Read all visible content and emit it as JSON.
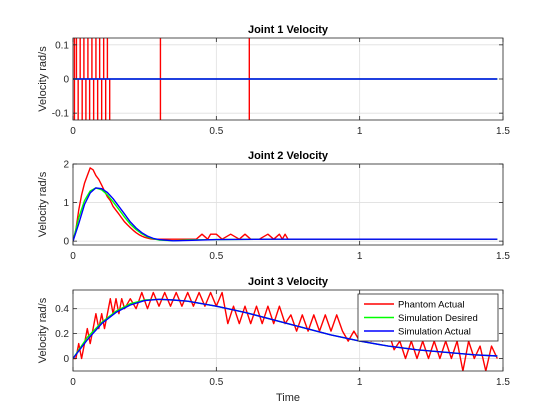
{
  "chart_data": [
    {
      "type": "line",
      "title": "Joint 1 Velocity",
      "xlabel": "",
      "ylabel": "Velocity rad/s",
      "xlim": [
        0,
        1.5
      ],
      "ylim": [
        -0.12,
        0.12
      ],
      "xticks": [
        0,
        0.5,
        1,
        1.5
      ],
      "xtick_labels": [
        "0",
        "0.5",
        "1",
        "1.5"
      ],
      "yticks": [
        -0.1,
        0,
        0.1
      ],
      "ytick_labels": [
        "-0.1",
        "0",
        "0.1"
      ],
      "grid": true,
      "legend": null,
      "series": [
        {
          "color": "#ff0000",
          "style": "spikes",
          "baseline": 0,
          "spikes": [
            {
              "x": 0.005,
              "y": 0.12
            },
            {
              "x": 0.005,
              "y": -0.12
            },
            {
              "x": 0.012,
              "y": 0.12
            },
            {
              "x": 0.018,
              "y": -0.12
            },
            {
              "x": 0.025,
              "y": 0.12
            },
            {
              "x": 0.032,
              "y": -0.12
            },
            {
              "x": 0.038,
              "y": 0.12
            },
            {
              "x": 0.045,
              "y": -0.12
            },
            {
              "x": 0.052,
              "y": 0.12
            },
            {
              "x": 0.058,
              "y": -0.12
            },
            {
              "x": 0.066,
              "y": 0.12
            },
            {
              "x": 0.072,
              "y": -0.12
            },
            {
              "x": 0.08,
              "y": 0.12
            },
            {
              "x": 0.086,
              "y": -0.12
            },
            {
              "x": 0.093,
              "y": 0.12
            },
            {
              "x": 0.1,
              "y": -0.12
            },
            {
              "x": 0.107,
              "y": 0.12
            },
            {
              "x": 0.114,
              "y": -0.12
            },
            {
              "x": 0.12,
              "y": 0.12
            },
            {
              "x": 0.128,
              "y": -0.12
            },
            {
              "x": 0.305,
              "y": 0.12
            },
            {
              "x": 0.305,
              "y": -0.12
            },
            {
              "x": 0.615,
              "y": 0.12
            },
            {
              "x": 0.615,
              "y": -0.12
            }
          ]
        },
        {
          "color": "#00ff00",
          "x": [
            0,
            1.48
          ],
          "y": [
            0,
            0
          ]
        },
        {
          "color": "#0000ff",
          "x": [
            0,
            1.48
          ],
          "y": [
            0,
            0
          ]
        }
      ]
    },
    {
      "type": "line",
      "title": "Joint 2 Velocity",
      "xlabel": "",
      "ylabel": "Velocity rad/s",
      "xlim": [
        0,
        1.5
      ],
      "ylim": [
        -0.1,
        2
      ],
      "xticks": [
        0,
        0.5,
        1,
        1.5
      ],
      "xtick_labels": [
        "0",
        "0.5",
        "1",
        "1.5"
      ],
      "yticks": [
        0,
        1,
        2
      ],
      "ytick_labels": [
        "0",
        "1",
        "2"
      ],
      "grid": true,
      "legend": null,
      "series": [
        {
          "color": "#ff0000",
          "x": [
            0,
            0.01,
            0.02,
            0.03,
            0.04,
            0.05,
            0.06,
            0.07,
            0.08,
            0.09,
            0.1,
            0.11,
            0.12,
            0.13,
            0.14,
            0.15,
            0.16,
            0.17,
            0.18,
            0.19,
            0.2,
            0.21,
            0.22,
            0.23,
            0.24,
            0.25,
            0.26,
            0.27,
            0.28,
            0.3,
            0.32,
            0.35,
            0.4,
            0.43,
            0.45,
            0.47,
            0.48,
            0.5,
            0.52,
            0.55,
            0.58,
            0.6,
            0.62,
            0.65,
            0.68,
            0.7,
            0.72,
            0.73,
            0.74,
            0.75,
            0.76,
            0.8,
            1.0,
            1.48
          ],
          "y": [
            0,
            0.3,
            0.8,
            1.2,
            1.5,
            1.7,
            1.9,
            1.85,
            1.7,
            1.6,
            1.45,
            1.3,
            1.15,
            1.05,
            0.9,
            0.8,
            0.7,
            0.6,
            0.5,
            0.42,
            0.35,
            0.28,
            0.22,
            0.17,
            0.13,
            0.1,
            0.08,
            0.06,
            0.05,
            0.05,
            0.05,
            0.05,
            0.05,
            0.05,
            0.18,
            0.05,
            0.18,
            0.18,
            0.05,
            0.18,
            0.05,
            0.18,
            0.05,
            0.05,
            0.18,
            0.05,
            0.18,
            0.05,
            0.18,
            0.05,
            0.05,
            0.05,
            0.05,
            0.05
          ]
        },
        {
          "color": "#00ff00",
          "x": [
            0,
            0.02,
            0.04,
            0.06,
            0.08,
            0.1,
            0.12,
            0.14,
            0.16,
            0.18,
            0.2,
            0.22,
            0.24,
            0.26,
            0.28,
            0.3,
            0.35,
            0.4,
            0.5,
            0.7,
            1.0,
            1.48
          ],
          "y": [
            0,
            0.6,
            1.05,
            1.3,
            1.38,
            1.33,
            1.2,
            1.02,
            0.82,
            0.62,
            0.44,
            0.3,
            0.19,
            0.11,
            0.06,
            0.03,
            0.01,
            0.03,
            0.04,
            0.05,
            0.05,
            0.05
          ]
        },
        {
          "color": "#0000ff",
          "x": [
            0,
            0.02,
            0.04,
            0.06,
            0.08,
            0.1,
            0.12,
            0.14,
            0.16,
            0.18,
            0.2,
            0.22,
            0.24,
            0.26,
            0.28,
            0.3,
            0.35,
            0.4,
            0.5,
            0.7,
            1.0,
            1.48
          ],
          "y": [
            0,
            0.45,
            0.95,
            1.25,
            1.38,
            1.36,
            1.26,
            1.1,
            0.9,
            0.7,
            0.5,
            0.34,
            0.22,
            0.13,
            0.07,
            0.04,
            0.01,
            0.02,
            0.04,
            0.05,
            0.05,
            0.05
          ]
        }
      ]
    },
    {
      "type": "line",
      "title": "Joint 3 Velocity",
      "xlabel": "Time",
      "ylabel": "Velocity rad/s",
      "xlim": [
        0,
        1.5
      ],
      "ylim": [
        -0.1,
        0.55
      ],
      "xticks": [
        0,
        0.5,
        1,
        1.5
      ],
      "xtick_labels": [
        "0",
        "0.5",
        "1",
        "1.5"
      ],
      "yticks": [
        0,
        0.2,
        0.4
      ],
      "ytick_labels": [
        "0",
        "0.2",
        "0.4"
      ],
      "grid": true,
      "legend": {
        "location": "top-right",
        "entries": [
          "Phantom Actual",
          "Simulation Desired",
          "Simulation Actual"
        ]
      },
      "series": [
        {
          "name": "Phantom Actual",
          "color": "#ff0000",
          "x": [
            0,
            0.01,
            0.02,
            0.03,
            0.04,
            0.05,
            0.06,
            0.07,
            0.08,
            0.09,
            0.1,
            0.11,
            0.12,
            0.13,
            0.14,
            0.15,
            0.16,
            0.17,
            0.18,
            0.2,
            0.22,
            0.24,
            0.26,
            0.28,
            0.3,
            0.32,
            0.34,
            0.36,
            0.38,
            0.4,
            0.42,
            0.44,
            0.46,
            0.48,
            0.5,
            0.52,
            0.54,
            0.56,
            0.58,
            0.6,
            0.62,
            0.64,
            0.66,
            0.68,
            0.7,
            0.72,
            0.74,
            0.76,
            0.78,
            0.8,
            0.82,
            0.84,
            0.86,
            0.88,
            0.9,
            0.92,
            0.94,
            0.96,
            0.98,
            1.0,
            1.02,
            1.04,
            1.06,
            1.08,
            1.1,
            1.12,
            1.14,
            1.16,
            1.18,
            1.2,
            1.22,
            1.24,
            1.26,
            1.28,
            1.3,
            1.32,
            1.34,
            1.36,
            1.38,
            1.4,
            1.42,
            1.44,
            1.46,
            1.48
          ],
          "y": [
            0,
            0.0,
            0.12,
            0.0,
            0.12,
            0.24,
            0.12,
            0.24,
            0.36,
            0.24,
            0.36,
            0.24,
            0.36,
            0.48,
            0.36,
            0.48,
            0.36,
            0.48,
            0.4,
            0.48,
            0.4,
            0.53,
            0.4,
            0.53,
            0.42,
            0.53,
            0.42,
            0.53,
            0.42,
            0.53,
            0.42,
            0.53,
            0.42,
            0.53,
            0.42,
            0.53,
            0.28,
            0.42,
            0.28,
            0.42,
            0.28,
            0.42,
            0.28,
            0.42,
            0.28,
            0.42,
            0.28,
            0.35,
            0.22,
            0.35,
            0.22,
            0.35,
            0.22,
            0.35,
            0.22,
            0.35,
            0.22,
            0.14,
            0.22,
            0.14,
            0.22,
            0.14,
            0.22,
            0.14,
            0.22,
            0.07,
            0.14,
            0.0,
            0.14,
            0.0,
            0.14,
            0.0,
            0.14,
            0.0,
            0.14,
            0.0,
            0.14,
            -0.1,
            0.14,
            0.0,
            0.1,
            -0.1,
            0.1,
            0.0
          ]
        },
        {
          "name": "Simulation Desired",
          "color": "#00ff00",
          "x": [
            0,
            0.05,
            0.1,
            0.15,
            0.2,
            0.25,
            0.3,
            0.35,
            0.4,
            0.5,
            0.6,
            0.7,
            0.8,
            0.9,
            1.0,
            1.1,
            1.2,
            1.3,
            1.4,
            1.48
          ],
          "y": [
            0,
            0.17,
            0.29,
            0.38,
            0.44,
            0.47,
            0.475,
            0.47,
            0.46,
            0.42,
            0.37,
            0.31,
            0.25,
            0.19,
            0.14,
            0.1,
            0.07,
            0.05,
            0.03,
            0.02
          ]
        },
        {
          "name": "Simulation Actual",
          "color": "#0000ff",
          "x": [
            0,
            0.05,
            0.1,
            0.15,
            0.2,
            0.25,
            0.3,
            0.35,
            0.4,
            0.5,
            0.6,
            0.7,
            0.8,
            0.9,
            1.0,
            1.1,
            1.2,
            1.3,
            1.4,
            1.48
          ],
          "y": [
            0,
            0.15,
            0.28,
            0.37,
            0.43,
            0.465,
            0.475,
            0.47,
            0.46,
            0.42,
            0.37,
            0.31,
            0.25,
            0.19,
            0.14,
            0.1,
            0.07,
            0.05,
            0.03,
            0.02
          ]
        }
      ]
    }
  ]
}
